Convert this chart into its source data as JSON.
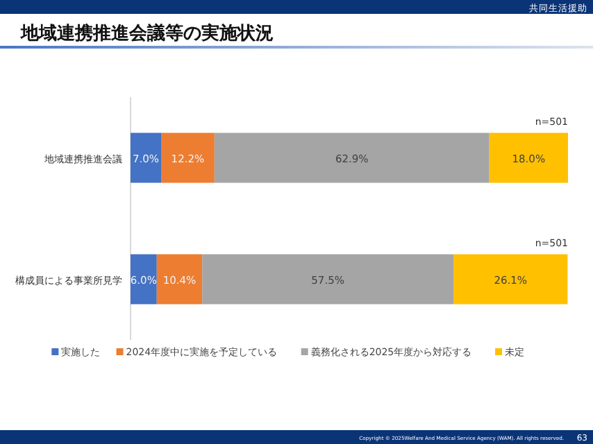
{
  "chart_data": {
    "type": "bar",
    "title": "地域連携推進会議等の実施状況",
    "orientation": "horizontal",
    "stacked": true,
    "categories": [
      "地域連携推進会議",
      "構成員による事業所見学"
    ],
    "series": [
      {
        "name": "実施した",
        "color": "#4472c4",
        "values": [
          7.0,
          6.0
        ],
        "value_labels": [
          "7.0%",
          "6.0%"
        ]
      },
      {
        "name": "2024年度中に実施を予定している",
        "color": "#ed7d31",
        "values": [
          12.2,
          10.4
        ],
        "value_labels": [
          "12.2%",
          "10.4%"
        ]
      },
      {
        "name": "義務化される2025年度から対応する",
        "color": "#a5a5a5",
        "values": [
          62.9,
          57.5
        ],
        "value_labels": [
          "62.9%",
          "57.5%"
        ]
      },
      {
        "name": "未定",
        "color": "#ffc000",
        "values": [
          18.0,
          26.1
        ],
        "value_labels": [
          "18.0%",
          "26.1%"
        ]
      }
    ],
    "annotations": [
      "n=501",
      "n=501",
      "共同生活援助",
      "Copyright © 2025Welfare And Medical Service Agency (WAM). All rights reserved.",
      "63"
    ],
    "legend": "bottom"
  }
}
